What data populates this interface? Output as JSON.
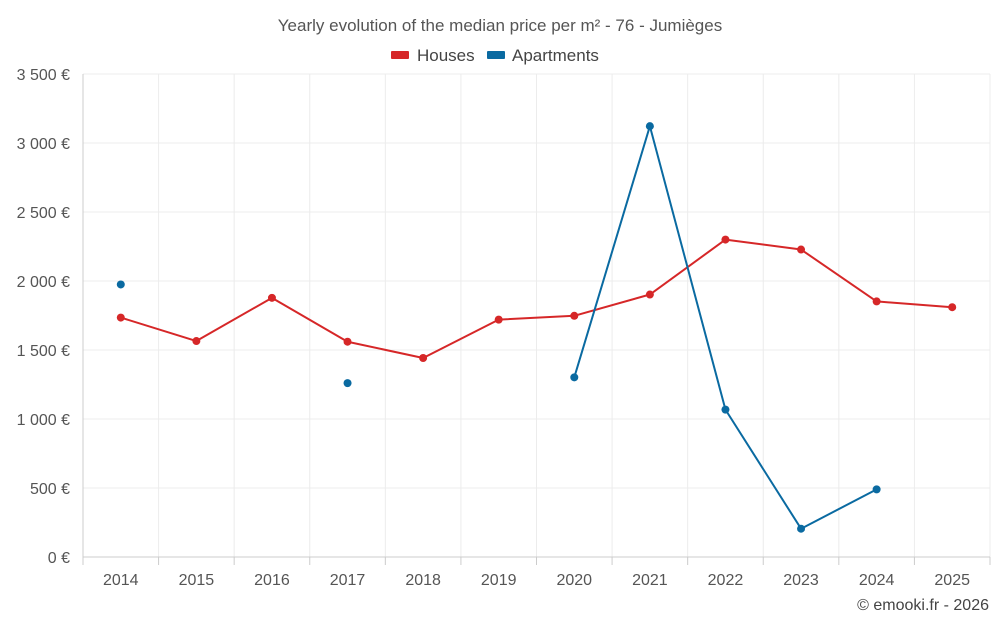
{
  "chart_data": {
    "type": "line",
    "title": "Yearly evolution of the median price per m² - 76 - Jumièges",
    "categories": [
      "2014",
      "2015",
      "2016",
      "2017",
      "2018",
      "2019",
      "2020",
      "2021",
      "2022",
      "2023",
      "2024",
      "2025"
    ],
    "series": [
      {
        "name": "Houses",
        "color": "#d62728",
        "values": [
          1735,
          1565,
          1878,
          1560,
          1442,
          1720,
          1748,
          1902,
          2300,
          2228,
          1852,
          1810
        ]
      },
      {
        "name": "Apartments",
        "color": "#0a6aa1",
        "values": [
          1975,
          null,
          null,
          1260,
          null,
          null,
          1302,
          3122,
          1068,
          205,
          490,
          null
        ]
      }
    ],
    "ylim": [
      0,
      3500
    ],
    "yticks": [
      0,
      500,
      1000,
      1500,
      2000,
      2500,
      3000,
      3500
    ],
    "ytick_labels": [
      "0 €",
      "500 €",
      "1 000 €",
      "1 500 €",
      "2 000 €",
      "2 500 €",
      "3 000 €",
      "3 500 €"
    ],
    "legend_position": "top-center",
    "grid": true,
    "xlabel": "",
    "ylabel": ""
  },
  "credit": "© emooki.fr - 2026"
}
